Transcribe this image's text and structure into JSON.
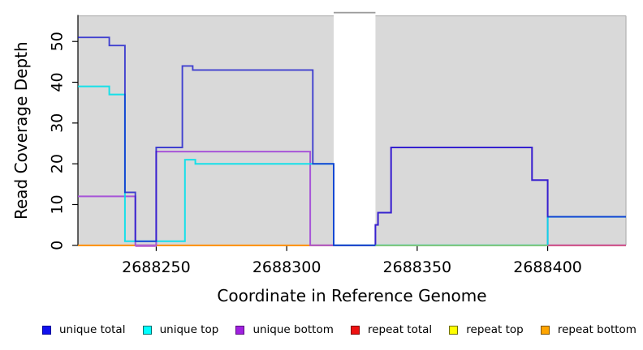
{
  "chart_data": {
    "type": "step-line",
    "title": "",
    "xlabel": "Coordinate in Reference Genome",
    "ylabel": "Read Coverage Depth",
    "xlim": [
      2688220,
      2688430
    ],
    "ylim": [
      0,
      56.3
    ],
    "xticks": [
      2688250,
      2688300,
      2688350,
      2688400
    ],
    "xtick_labels": [
      "2688250",
      "2688300",
      "2688350",
      "2688400"
    ],
    "yticks": [
      0,
      10,
      20,
      30,
      40,
      50
    ],
    "ytick_labels": [
      "0",
      "10",
      "20",
      "30",
      "40",
      "50"
    ],
    "grid": false,
    "legend_position": "bottom",
    "plot_bg": "#D9D9D9",
    "frame_color": "#B5B5B5",
    "bottom_frame_color": "#8C8C8C",
    "axis_color": "#000000",
    "no_data_region": {
      "from": 2688318,
      "to": 2688334,
      "fill": "#FFFFFF",
      "top_border": "#999999"
    },
    "series": [
      {
        "name": "unique total",
        "color": "#1414CC",
        "width": 1.9,
        "opacity": 0.78,
        "steps": [
          [
            2688220,
            51
          ],
          [
            2688232,
            49
          ],
          [
            2688238,
            13
          ],
          [
            2688242,
            1
          ],
          [
            2688250,
            24
          ],
          [
            2688260,
            44
          ],
          [
            2688264,
            43
          ],
          [
            2688310,
            20
          ],
          [
            2688318,
            0
          ],
          [
            2688334,
            5
          ],
          [
            2688335,
            8
          ],
          [
            2688340,
            24
          ],
          [
            2688394,
            16
          ],
          [
            2688400,
            7
          ]
        ]
      },
      {
        "name": "unique top",
        "color": "#00E0EA",
        "width": 2.0,
        "opacity": 0.9,
        "steps": [
          [
            2688220,
            39
          ],
          [
            2688232,
            37
          ],
          [
            2688238,
            1
          ],
          [
            2688261,
            21
          ],
          [
            2688265,
            20
          ],
          [
            2688318,
            0
          ],
          [
            2688400,
            7
          ]
        ]
      },
      {
        "name": "unique bottom",
        "color": "#A44ED8",
        "width": 2.0,
        "opacity": 0.95,
        "steps": [
          [
            2688220,
            12
          ],
          [
            2688242,
            0
          ],
          [
            2688250,
            23
          ],
          [
            2688309,
            0
          ],
          [
            2688334,
            5
          ],
          [
            2688335,
            8
          ],
          [
            2688340,
            24
          ],
          [
            2688394,
            16
          ],
          [
            2688400,
            0
          ]
        ]
      },
      {
        "name": "repeat total",
        "color": "#D22A2A",
        "width": 1.6,
        "opacity": 1,
        "steps": [
          [
            2688220,
            0
          ]
        ]
      },
      {
        "name": "repeat top",
        "color": "#FFFF00",
        "width": 1.6,
        "opacity": 1,
        "steps": [
          [
            2688220,
            0
          ]
        ]
      },
      {
        "name": "repeat bottom",
        "color": "#FF8C00",
        "width": 1.8,
        "opacity": 1,
        "steps": [
          [
            2688220,
            0
          ]
        ]
      }
    ],
    "draw_order": [
      3,
      4,
      5,
      2,
      1,
      0
    ],
    "baseline_overlaps": [
      {
        "from": 2688242,
        "to": 2688250,
        "color": "#C77FD6",
        "width": 1.6,
        "dy": 1.4
      },
      {
        "from": 2688334,
        "to": 2688400,
        "color": "#7CC87C",
        "width": 1.7,
        "dy": 0
      },
      {
        "from": 2688400,
        "to": 2688430,
        "color": "#D0508C",
        "width": 1.7,
        "dy": 0
      }
    ],
    "legend": [
      {
        "label": "unique total",
        "fill": "#1111EE",
        "border": "#000099"
      },
      {
        "label": "unique top",
        "fill": "#00FFFF",
        "border": "#006E6E"
      },
      {
        "label": "unique bottom",
        "fill": "#A021E0",
        "border": "#5A0E7E"
      },
      {
        "label": "repeat total",
        "fill": "#EE1111",
        "border": "#7E0000"
      },
      {
        "label": "repeat top",
        "fill": "#FFFF00",
        "border": "#6E6E00"
      },
      {
        "label": "repeat bottom",
        "fill": "#FFA500",
        "border": "#7E5200"
      }
    ]
  }
}
